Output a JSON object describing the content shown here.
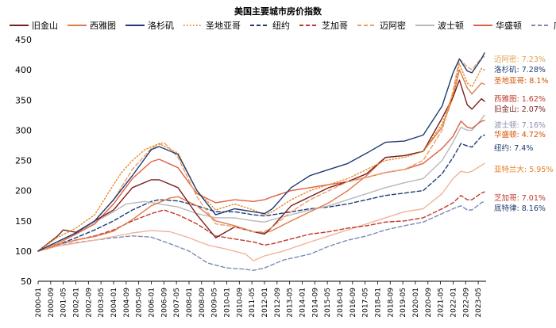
{
  "chart_data": {
    "type": "line",
    "title": "美国主要城市房价指数",
    "xlabel": "",
    "ylabel": "",
    "ylim": [
      50,
      450
    ],
    "y_ticks": [
      50,
      100,
      150,
      200,
      250,
      300,
      350,
      400,
      450
    ],
    "x_ticks": [
      "2000-01",
      "2000-10",
      "2001-07",
      "2002-04",
      "2003-01",
      "2003-10",
      "2004-07",
      "2005-04",
      "2006-01",
      "2006-10",
      "2007-07",
      "2008-04",
      "2009-01",
      "2009-10",
      "2010-07",
      "2011-04",
      "2012-01",
      "2012-10",
      "2013-07",
      "2014-04",
      "2015-01",
      "2015-10",
      "2016-07",
      "2017-04",
      "2018-01",
      "2018-10",
      "2019-07",
      "2020-04",
      "2021-01",
      "2021-10",
      "2022-07",
      "2023-04"
    ],
    "x_ticks_shown": [
      "2000-01",
      "2000-09",
      "2001-05",
      "2002-01",
      "2002-09",
      "2003-05",
      "2004-01",
      "2004-09",
      "2005-05",
      "2006-01",
      "2006-09",
      "2007-05",
      "2008-01",
      "2008-09",
      "2009-05",
      "2010-01",
      "2010-09",
      "2011-05",
      "2012-01",
      "2012-09",
      "2013-05",
      "2014-01",
      "2014-09",
      "2015-05",
      "2016-01",
      "2016-09",
      "2017-05",
      "2018-01",
      "2018-09",
      "2019-05",
      "2020-01",
      "2020-09",
      "2021-05",
      "2022-01",
      "2022-09",
      "2023-05"
    ],
    "grid": false,
    "legend_position": "top",
    "series": [
      {
        "name": "旧金山",
        "color": "#7b1e1e",
        "dash": "solid",
        "annotation": "旧金山: 2.07%",
        "annotation_color": "#7b1e1e",
        "x": [
          "2000-01",
          "2001-01",
          "2001-05",
          "2002-01",
          "2003-01",
          "2004-01",
          "2005-01",
          "2006-01",
          "2006-06",
          "2007-06",
          "2008-06",
          "2009-06",
          "2010-06",
          "2011-06",
          "2012-01",
          "2012-06",
          "2013-06",
          "2014-06",
          "2015-06",
          "2016-06",
          "2017-06",
          "2018-06",
          "2019-06",
          "2020-06",
          "2021-06",
          "2022-01",
          "2022-05",
          "2022-10",
          "2023-01",
          "2023-07",
          "2023-09"
        ],
        "values": [
          100,
          124,
          135,
          131,
          150,
          168,
          205,
          218,
          218,
          205,
          160,
          122,
          140,
          132,
          128,
          140,
          175,
          190,
          205,
          215,
          228,
          255,
          258,
          265,
          320,
          355,
          383,
          342,
          335,
          352,
          348
        ]
      },
      {
        "name": "西雅图",
        "color": "#e07a4a",
        "dash": "solid",
        "annotation": "西雅图: 1.62%",
        "annotation_color": "#c0392b",
        "x": [
          "2000-01",
          "2001-01",
          "2002-01",
          "2003-01",
          "2004-01",
          "2005-01",
          "2006-01",
          "2007-01",
          "2007-06",
          "2008-06",
          "2009-06",
          "2010-06",
          "2011-06",
          "2012-01",
          "2012-06",
          "2013-06",
          "2014-06",
          "2015-06",
          "2016-06",
          "2017-06",
          "2018-06",
          "2019-06",
          "2020-06",
          "2021-06",
          "2022-01",
          "2022-05",
          "2022-10",
          "2023-01",
          "2023-07",
          "2023-09"
        ],
        "values": [
          100,
          110,
          118,
          124,
          133,
          152,
          175,
          188,
          190,
          175,
          150,
          142,
          132,
          130,
          134,
          150,
          165,
          180,
          200,
          225,
          255,
          258,
          265,
          305,
          355,
          400,
          370,
          360,
          378,
          376
        ]
      },
      {
        "name": "洛杉矶",
        "color": "#1f3b73",
        "dash": "solid",
        "annotation": "洛杉矶: 7.28%",
        "annotation_color": "#1f3b73",
        "x": [
          "2000-01",
          "2001-01",
          "2002-01",
          "2003-01",
          "2004-01",
          "2005-01",
          "2006-01",
          "2006-06",
          "2007-06",
          "2008-06",
          "2009-06",
          "2010-06",
          "2011-06",
          "2012-01",
          "2012-06",
          "2013-06",
          "2014-06",
          "2015-06",
          "2016-06",
          "2017-06",
          "2018-06",
          "2019-06",
          "2020-06",
          "2021-06",
          "2022-01",
          "2022-05",
          "2022-10",
          "2023-01",
          "2023-07",
          "2023-09"
        ],
        "values": [
          100,
          115,
          130,
          150,
          185,
          225,
          268,
          273,
          260,
          200,
          160,
          170,
          165,
          162,
          170,
          205,
          225,
          235,
          245,
          262,
          280,
          282,
          292,
          340,
          395,
          418,
          398,
          395,
          418,
          428
        ]
      },
      {
        "name": "圣地亚哥",
        "color": "#e98b2a",
        "dash": "dot",
        "annotation": "圣地亚哥: 8.1%",
        "annotation_color": "#d35400",
        "x": [
          "2000-01",
          "2001-01",
          "2002-01",
          "2003-01",
          "2004-01",
          "2004-06",
          "2005-01",
          "2005-09",
          "2006-06",
          "2007-06",
          "2008-06",
          "2009-06",
          "2010-06",
          "2011-06",
          "2012-01",
          "2012-06",
          "2013-06",
          "2014-06",
          "2015-06",
          "2016-06",
          "2017-06",
          "2018-06",
          "2019-06",
          "2020-06",
          "2021-06",
          "2022-01",
          "2022-05",
          "2022-10",
          "2023-01",
          "2023-07",
          "2023-09"
        ],
        "values": [
          100,
          122,
          138,
          160,
          210,
          230,
          250,
          268,
          278,
          262,
          200,
          168,
          178,
          168,
          160,
          165,
          185,
          200,
          210,
          220,
          235,
          250,
          255,
          265,
          310,
          360,
          410,
          378,
          372,
          402,
          400
        ]
      },
      {
        "name": "纽约",
        "color": "#1f3b73",
        "dash": "dash",
        "annotation": "纽约: 7.4%",
        "annotation_color": "#1f3b73",
        "x": [
          "2000-01",
          "2001-01",
          "2002-01",
          "2003-01",
          "2004-01",
          "2005-01",
          "2006-01",
          "2006-06",
          "2007-06",
          "2008-06",
          "2009-06",
          "2010-06",
          "2011-06",
          "2012-01",
          "2012-06",
          "2013-06",
          "2014-06",
          "2015-06",
          "2016-06",
          "2017-06",
          "2018-06",
          "2019-06",
          "2020-06",
          "2021-06",
          "2022-01",
          "2022-06",
          "2022-10",
          "2023-01",
          "2023-07",
          "2023-09"
        ],
        "values": [
          100,
          110,
          122,
          135,
          150,
          168,
          182,
          185,
          183,
          175,
          165,
          165,
          160,
          158,
          160,
          165,
          170,
          173,
          178,
          185,
          192,
          196,
          200,
          228,
          255,
          278,
          274,
          272,
          290,
          292
        ]
      },
      {
        "name": "芝加哥",
        "color": "#c0392b",
        "dash": "dash",
        "annotation": "芝加哥: 7.01%",
        "annotation_color": "#c0392b",
        "x": [
          "2000-01",
          "2001-01",
          "2002-01",
          "2003-01",
          "2004-01",
          "2005-01",
          "2006-01",
          "2006-09",
          "2007-06",
          "2008-06",
          "2009-06",
          "2010-06",
          "2011-06",
          "2012-01",
          "2012-06",
          "2013-06",
          "2014-06",
          "2015-06",
          "2016-06",
          "2017-06",
          "2018-06",
          "2019-06",
          "2020-06",
          "2021-06",
          "2022-01",
          "2022-06",
          "2022-10",
          "2023-01",
          "2023-07",
          "2023-09"
        ],
        "values": [
          100,
          110,
          118,
          125,
          135,
          150,
          162,
          168,
          160,
          145,
          125,
          120,
          115,
          110,
          112,
          120,
          128,
          132,
          138,
          142,
          148,
          150,
          155,
          170,
          180,
          192,
          185,
          185,
          196,
          198
        ]
      },
      {
        "name": "迈阿密",
        "color": "#e8a06a",
        "dash": "dash",
        "annotation": "迈阿密: 7.23%",
        "annotation_color": "#e0a050",
        "x": [
          "2000-01",
          "2001-01",
          "2002-01",
          "2003-01",
          "2004-01",
          "2005-01",
          "2006-01",
          "2006-09",
          "2007-06",
          "2008-06",
          "2009-06",
          "2010-06",
          "2011-06",
          "2012-01",
          "2012-06",
          "2013-06",
          "2014-06",
          "2015-06",
          "2016-06",
          "2017-06",
          "2018-06",
          "2019-06",
          "2020-06",
          "2021-06",
          "2022-01",
          "2022-05",
          "2022-10",
          "2023-01",
          "2023-07",
          "2023-09"
        ],
        "values": [
          100,
          112,
          130,
          150,
          185,
          235,
          270,
          280,
          255,
          190,
          145,
          140,
          132,
          132,
          140,
          165,
          185,
          200,
          215,
          222,
          230,
          235,
          250,
          300,
          365,
          418,
          405,
          400,
          420,
          422
        ]
      },
      {
        "name": "波士顿",
        "color": "#b9b9bd",
        "dash": "solid",
        "annotation": "波士顿: 7.16%",
        "annotation_color": "#8a8fb0",
        "x": [
          "2000-01",
          "2001-01",
          "2002-01",
          "2003-01",
          "2004-01",
          "2004-09",
          "2005-09",
          "2006-06",
          "2007-06",
          "2008-06",
          "2009-06",
          "2010-06",
          "2011-06",
          "2012-01",
          "2012-06",
          "2013-06",
          "2014-06",
          "2015-06",
          "2016-06",
          "2017-06",
          "2018-06",
          "2019-06",
          "2020-06",
          "2021-06",
          "2022-01",
          "2022-06",
          "2022-10",
          "2023-01",
          "2023-07",
          "2023-09"
        ],
        "values": [
          100,
          115,
          130,
          148,
          165,
          178,
          182,
          178,
          173,
          162,
          155,
          155,
          150,
          148,
          152,
          160,
          168,
          175,
          185,
          195,
          205,
          213,
          220,
          250,
          280,
          305,
          300,
          300,
          318,
          325
        ]
      },
      {
        "name": "华盛顿",
        "color": "#e06040",
        "dash": "solid",
        "annotation": "华盛顿: 4.72%",
        "annotation_color": "#d35400",
        "x": [
          "2000-01",
          "2001-01",
          "2002-01",
          "2003-01",
          "2004-01",
          "2005-01",
          "2006-01",
          "2006-06",
          "2007-06",
          "2008-06",
          "2009-06",
          "2010-06",
          "2011-06",
          "2012-01",
          "2012-06",
          "2013-06",
          "2014-06",
          "2015-06",
          "2016-06",
          "2017-06",
          "2018-06",
          "2019-06",
          "2020-06",
          "2021-06",
          "2022-01",
          "2022-06",
          "2022-10",
          "2023-01",
          "2023-07",
          "2023-09"
        ],
        "values": [
          100,
          112,
          128,
          145,
          178,
          220,
          248,
          252,
          238,
          195,
          180,
          185,
          182,
          185,
          190,
          200,
          205,
          210,
          215,
          222,
          230,
          235,
          245,
          270,
          290,
          315,
          305,
          303,
          315,
          316
        ]
      },
      {
        "name": "底特律",
        "color": "#7a8bb8",
        "dash": "dash",
        "annotation": "底特律: 8.16%",
        "annotation_color": "#1f3b73",
        "x": [
          "2000-01",
          "2001-01",
          "2002-01",
          "2003-01",
          "2004-01",
          "2005-01",
          "2006-01",
          "2007-01",
          "2008-01",
          "2009-01",
          "2010-01",
          "2011-01",
          "2011-06",
          "2012-01",
          "2013-01",
          "2014-06",
          "2015-06",
          "2016-06",
          "2017-06",
          "2018-06",
          "2019-06",
          "2020-06",
          "2021-06",
          "2022-01",
          "2022-06",
          "2022-10",
          "2023-01",
          "2023-07",
          "2023-09"
        ],
        "values": [
          100,
          108,
          114,
          118,
          122,
          125,
          123,
          112,
          100,
          80,
          72,
          70,
          68,
          72,
          85,
          95,
          108,
          118,
          125,
          135,
          142,
          148,
          162,
          170,
          175,
          168,
          168,
          180,
          182
        ]
      },
      {
        "name": "亚特兰大",
        "color": "#f2b39a",
        "dash": "solid",
        "annotation": "亚特兰大: 5.95%",
        "annotation_color": "#e67e22",
        "x": [
          "2000-01",
          "2001-01",
          "2002-01",
          "2003-01",
          "2004-01",
          "2005-01",
          "2006-01",
          "2007-01",
          "2008-01",
          "2009-01",
          "2010-01",
          "2011-01",
          "2011-06",
          "2012-01",
          "2013-01",
          "2014-06",
          "2015-06",
          "2016-06",
          "2017-06",
          "2018-06",
          "2019-06",
          "2020-06",
          "2021-06",
          "2022-01",
          "2022-06",
          "2022-10",
          "2023-01",
          "2023-07",
          "2023-09"
        ],
        "values": [
          100,
          108,
          113,
          118,
          124,
          130,
          134,
          132,
          122,
          110,
          103,
          95,
          84,
          92,
          100,
          115,
          125,
          135,
          145,
          155,
          165,
          170,
          195,
          220,
          232,
          230,
          232,
          242,
          245
        ]
      }
    ]
  }
}
